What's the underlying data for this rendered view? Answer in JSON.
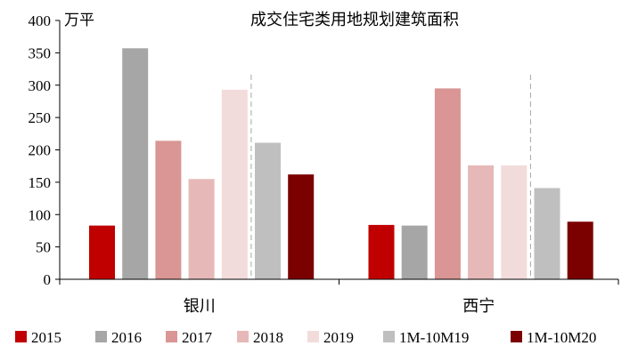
{
  "chart_data": {
    "type": "bar",
    "title": "成交住宅类用地规划建筑面积",
    "unit": "万平",
    "categories": [
      "银川",
      "西宁"
    ],
    "ylim": [
      0,
      400
    ],
    "yticks": [
      0,
      50,
      100,
      150,
      200,
      250,
      300,
      350,
      400
    ],
    "grid": false,
    "legend_position": "bottom",
    "series": [
      {
        "name": "2015",
        "color": "#c00000",
        "values": [
          83,
          84
        ]
      },
      {
        "name": "2016",
        "color": "#a6a6a6",
        "values": [
          357,
          83
        ]
      },
      {
        "name": "2017",
        "color": "#d99694",
        "values": [
          214,
          295
        ]
      },
      {
        "name": "2018",
        "color": "#e6b9b8",
        "values": [
          155,
          176
        ]
      },
      {
        "name": "2019",
        "color": "#f2dcdb",
        "values": [
          293,
          176
        ]
      },
      {
        "name": "1M-10M19",
        "color": "#bfbfbf",
        "values": [
          211,
          141
        ]
      },
      {
        "name": "1M-10M20",
        "color": "#7b0000",
        "values": [
          162,
          89
        ]
      }
    ]
  }
}
